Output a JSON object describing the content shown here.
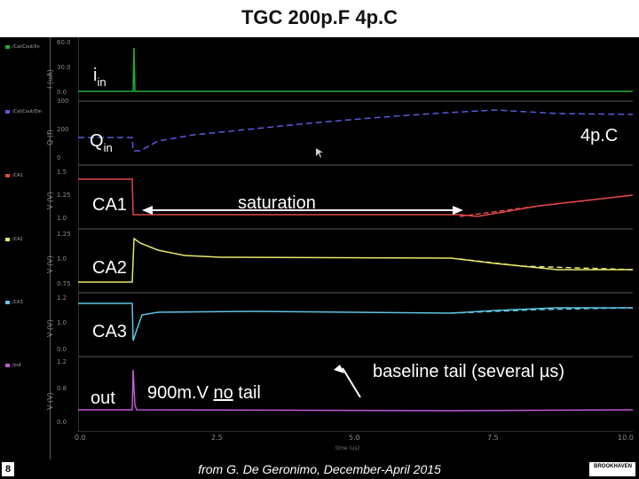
{
  "title": "TGC 200p.F 4p.C",
  "legend": [
    {
      "label": "/Cal/Cout/Iin",
      "color": "#22aa33"
    },
    {
      "label": "/Cal/Cout/Qin",
      "color": "#5a5adc"
    },
    {
      "label": "/CA1",
      "color": "#e04848"
    },
    {
      "label": "/CA2",
      "color": "#e8e86a"
    },
    {
      "label": "/CA3",
      "color": "#5ec4e4"
    },
    {
      "label": "/out",
      "color": "#c35ad8"
    }
  ],
  "y_axes": [
    {
      "unit": "I (uA)",
      "ticks": [
        "60.0",
        "30.0",
        "0.0"
      ]
    },
    {
      "unit": "Q (f)",
      "ticks": [
        "300",
        "200",
        "0"
      ]
    },
    {
      "unit": "V (V)",
      "ticks": [
        "1.5",
        "1.25",
        "1.0"
      ]
    },
    {
      "unit": "V (V)",
      "ticks": [
        "1.25",
        "1.0",
        "0.75"
      ]
    },
    {
      "unit": "V (V)",
      "ticks": [
        "1.2",
        "1.0",
        "0.0"
      ]
    },
    {
      "unit": "V (V)",
      "ticks": [
        "1.2",
        "0.8",
        "0.0"
      ]
    }
  ],
  "labels": {
    "iin_main": "i",
    "iin_sub": "in",
    "qin_main": "Q",
    "qin_sub": "in",
    "ca1": "CA1",
    "ca2": "CA2",
    "ca3": "CA3",
    "out": "out",
    "fourpc": "4p.C",
    "saturation": "saturation",
    "no_tail_prefix": "900m.V ",
    "no_tail_underlined": "no",
    "no_tail_suffix": " tail",
    "baseline_tail": "baseline tail (several µs)"
  },
  "x_axis": {
    "ticks": [
      "0.0",
      "2.5",
      "5.0",
      "7.5",
      "10.0"
    ],
    "unit": "time (us)"
  },
  "footer": {
    "credit": "from G. De Geronimo, December-April 2015",
    "page": "8",
    "logo": "BROOKHAVEN"
  },
  "colors": {
    "background": "#000000",
    "grid_line": "#5b5b5b",
    "arrow": "#ffffff"
  }
}
